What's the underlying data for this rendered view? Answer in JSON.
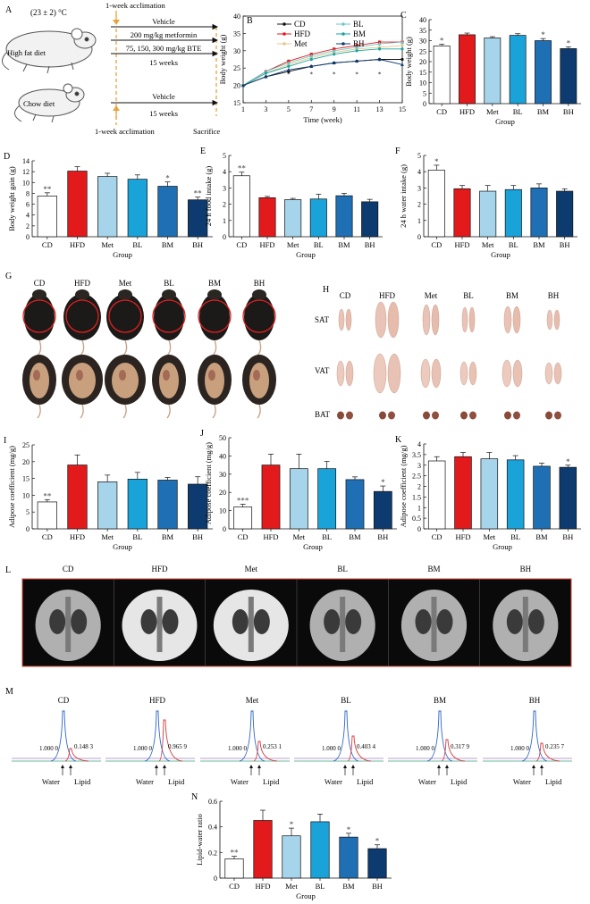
{
  "colors": {
    "CD": "#ffffff",
    "HFD": "#e31a1c",
    "Met": "#a6d4ea",
    "BL": "#1aa3d9",
    "BM": "#1f6fb5",
    "BH": "#0d3b70",
    "frame": "#111111",
    "arrow": "#e8a33b",
    "circle": "#e02020",
    "mri_bg": "#0a0a0a",
    "mri_border": "#e0483a"
  },
  "panelA": {
    "label": "A",
    "temp": "(23 ± 2) °C",
    "accl_top": "1-week acclimation",
    "accl_bottom": "1-week acclimation",
    "hfd_label": "High fat diet",
    "chow_label": "Chow diet",
    "rows_hfd": [
      "Vehicle",
      "200 mg/kg metformin",
      "75, 150, 300 mg/kg BTE",
      "15 weeks"
    ],
    "rows_chow": [
      "Vehicle",
      "15 weeks"
    ],
    "sacrifice": "Sacrifice"
  },
  "groups": [
    "CD",
    "HFD",
    "Met",
    "BL",
    "BM",
    "BH"
  ],
  "group_label": "Group",
  "panelG": {
    "label": "G"
  },
  "panelH": {
    "label": "H",
    "rows": [
      "SAT",
      "VAT",
      "BAT"
    ]
  },
  "panelL": {
    "label": "L"
  },
  "panelM": {
    "label": "M",
    "values": [
      "0.148 3",
      "0.965 9",
      "0.253 1",
      "0.403 4",
      "0.317 9",
      "0.235 7"
    ],
    "water_ref": "1.000 0",
    "water": "Water",
    "lipid": "Lipid"
  },
  "chart_data": [
    {
      "id": "B",
      "type": "line",
      "title": "B",
      "xlabel": "Time (week)",
      "ylabel": "Body weight (g)",
      "xlim": [
        1,
        15
      ],
      "ylim": [
        15,
        40
      ],
      "xticks": [
        1,
        3,
        5,
        7,
        9,
        11,
        13,
        15
      ],
      "yticks": [
        15,
        20,
        25,
        30,
        35,
        40
      ],
      "x": [
        1,
        3,
        5,
        7,
        9,
        11,
        13,
        15
      ],
      "legend": [
        "CD",
        "HFD",
        "Met",
        "BL",
        "BM",
        "BH"
      ],
      "series": [
        {
          "name": "CD",
          "values": [
            20.0,
            22.5,
            24.0,
            25.5,
            26.5,
            27.0,
            27.5,
            27.5
          ]
        },
        {
          "name": "HFD",
          "values": [
            20.0,
            24.0,
            27.0,
            29.0,
            30.5,
            31.5,
            32.5,
            32.5
          ]
        },
        {
          "name": "Met",
          "values": [
            20.0,
            23.5,
            26.0,
            28.0,
            29.5,
            30.5,
            31.0,
            31.5
          ]
        },
        {
          "name": "BL",
          "values": [
            20.0,
            24.0,
            26.5,
            28.5,
            30.0,
            31.0,
            32.0,
            32.5
          ]
        },
        {
          "name": "BM",
          "values": [
            20.0,
            23.5,
            25.5,
            27.5,
            29.0,
            30.0,
            30.5,
            30.5
          ]
        },
        {
          "name": "BH",
          "values": [
            20.0,
            22.5,
            24.5,
            25.5,
            26.5,
            27.0,
            27.5,
            26.0
          ]
        }
      ]
    },
    {
      "id": "C",
      "type": "bar",
      "title": "C",
      "ylabel": "Body weight (g)",
      "xlabel": "Group",
      "categories": [
        "CD",
        "HFD",
        "Met",
        "BL",
        "BM",
        "BH"
      ],
      "values": [
        27.5,
        32.8,
        31.3,
        32.5,
        30.0,
        26.2
      ],
      "errors": [
        0.8,
        0.8,
        0.6,
        0.8,
        1.0,
        0.8
      ],
      "sig": [
        "*",
        "",
        "",
        "",
        "*",
        "*"
      ],
      "ylim": [
        0,
        40
      ],
      "yticks": [
        0,
        5,
        10,
        15,
        20,
        25,
        30,
        35,
        40
      ]
    },
    {
      "id": "D",
      "type": "bar",
      "title": "D",
      "ylabel": "Body weight gain (g)",
      "xlabel": "Group",
      "categories": [
        "CD",
        "HFD",
        "Met",
        "BL",
        "BM",
        "BH"
      ],
      "values": [
        7.5,
        12.1,
        11.1,
        10.6,
        9.3,
        6.8
      ],
      "errors": [
        0.6,
        0.8,
        0.6,
        0.8,
        0.8,
        0.5
      ],
      "sig": [
        "**",
        "",
        "",
        "",
        "*",
        "**"
      ],
      "ylim": [
        0,
        14
      ],
      "yticks": [
        0,
        2,
        4,
        6,
        8,
        10,
        12,
        14
      ]
    },
    {
      "id": "E",
      "type": "bar",
      "title": "E",
      "ylabel": "24 h food intake (g)",
      "xlabel": "Group",
      "categories": [
        "CD",
        "HFD",
        "Met",
        "BL",
        "BM",
        "BH"
      ],
      "values": [
        3.75,
        2.4,
        2.28,
        2.32,
        2.52,
        2.15
      ],
      "errors": [
        0.22,
        0.08,
        0.08,
        0.3,
        0.15,
        0.15
      ],
      "sig": [
        "**",
        "",
        "",
        "",
        "",
        ""
      ],
      "ylim": [
        0,
        5
      ],
      "yticks": [
        0,
        1,
        2,
        3,
        4,
        5
      ]
    },
    {
      "id": "F",
      "type": "bar",
      "title": "F",
      "ylabel": "24 h water intake (g)",
      "xlabel": "Group",
      "categories": [
        "CD",
        "HFD",
        "Met",
        "BL",
        "BM",
        "BH"
      ],
      "values": [
        4.1,
        2.95,
        2.8,
        2.9,
        3.0,
        2.8
      ],
      "errors": [
        0.3,
        0.2,
        0.35,
        0.25,
        0.25,
        0.15
      ],
      "sig": [
        "*",
        "",
        "",
        "",
        "",
        ""
      ],
      "ylim": [
        0,
        5
      ],
      "yticks": [
        0,
        1,
        2,
        3,
        4,
        5
      ]
    },
    {
      "id": "I",
      "type": "bar",
      "title": "I",
      "ylabel": "Adipose coefficient (mg/g)",
      "xlabel": "Group",
      "categories": [
        "CD",
        "HFD",
        "Met",
        "BL",
        "BM",
        "BH"
      ],
      "values": [
        8.0,
        19.0,
        14.0,
        14.8,
        14.5,
        13.3
      ],
      "errors": [
        0.7,
        3.0,
        2.0,
        2.0,
        0.8,
        2.2
      ],
      "sig": [
        "**",
        "",
        "",
        "",
        "",
        ""
      ],
      "ylim": [
        0,
        25
      ],
      "yticks": [
        0,
        5,
        10,
        15,
        20,
        25
      ]
    },
    {
      "id": "J",
      "type": "bar",
      "title": "J",
      "ylabel": "Adipose coefficient (mg/g)",
      "xlabel": "Group",
      "categories": [
        "CD",
        "HFD",
        "Met",
        "BL",
        "BM",
        "BH"
      ],
      "values": [
        12.0,
        35.0,
        33.0,
        33.0,
        27.0,
        20.5
      ],
      "errors": [
        1.5,
        6.0,
        8.0,
        4.0,
        1.5,
        3.0
      ],
      "sig": [
        "***",
        "",
        "",
        "",
        "",
        "*"
      ],
      "ylim": [
        0,
        50
      ],
      "yticks": [
        0,
        10,
        20,
        30,
        40,
        50
      ]
    },
    {
      "id": "K",
      "type": "bar",
      "title": "K",
      "ylabel": "Adipose coefficient (mg/g)",
      "xlabel": "Group",
      "categories": [
        "CD",
        "HFD",
        "Met",
        "BL",
        "BM",
        "BH"
      ],
      "values": [
        3.2,
        3.4,
        3.3,
        3.25,
        2.95,
        2.9
      ],
      "errors": [
        0.2,
        0.2,
        0.3,
        0.2,
        0.15,
        0.1
      ],
      "sig": [
        "",
        "",
        "",
        "",
        "",
        "*"
      ],
      "ylim": [
        0,
        4
      ],
      "yticks": [
        0,
        0.5,
        1,
        1.5,
        2,
        2.5,
        3,
        3.5,
        4
      ]
    },
    {
      "id": "N",
      "type": "bar",
      "title": "N",
      "ylabel": "Lipid-water ratio",
      "xlabel": "Group",
      "categories": [
        "CD",
        "HFD",
        "Met",
        "BL",
        "BM",
        "BH"
      ],
      "values": [
        0.15,
        0.45,
        0.33,
        0.44,
        0.32,
        0.23
      ],
      "errors": [
        0.02,
        0.08,
        0.06,
        0.06,
        0.03,
        0.03
      ],
      "sig": [
        "**",
        "",
        "*",
        "",
        "*",
        "*"
      ],
      "ylim": [
        0,
        0.6
      ],
      "yticks": [
        0,
        0.2,
        0.4,
        0.6
      ]
    }
  ]
}
